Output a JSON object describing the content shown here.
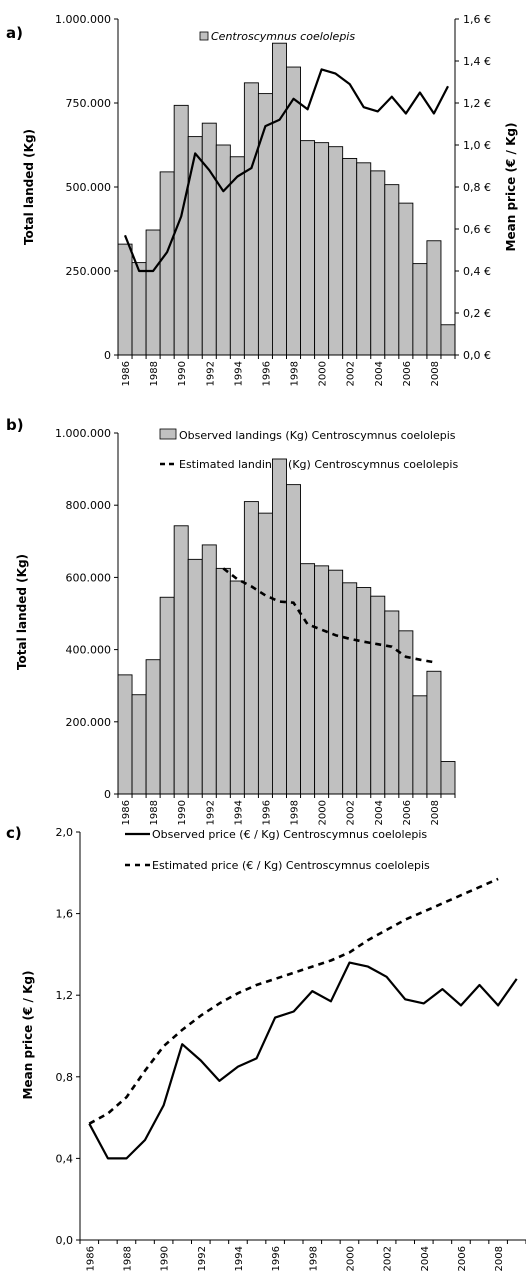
{
  "chart_data": [
    {
      "type": "bar",
      "panel_label": "a)",
      "title": "",
      "x": [
        1986,
        1987,
        1988,
        1989,
        1990,
        1991,
        1992,
        1993,
        1994,
        1995,
        1996,
        1997,
        1998,
        1999,
        2000,
        2001,
        2002,
        2003,
        2004,
        2005,
        2006,
        2007,
        2008,
        2009
      ],
      "xtick_labels": [
        "1986",
        "1988",
        "1990",
        "1992",
        "1994",
        "1996",
        "1998",
        "2000",
        "2002",
        "2004",
        "2006",
        "2008"
      ],
      "xtick_years": [
        1986,
        1988,
        1990,
        1992,
        1994,
        1996,
        1998,
        2000,
        2002,
        2004,
        2006,
        2008
      ],
      "ylabel": "Total landed (Kg)",
      "y2label": "Mean price (€ / Kg)",
      "ylim": [
        0,
        1000000
      ],
      "y2lim": [
        0,
        1.6
      ],
      "yticks": [
        0,
        250000,
        500000,
        750000,
        1000000
      ],
      "ytick_labels": [
        "0",
        "250.000",
        "500.000",
        "750.000",
        "1.000.000"
      ],
      "y2ticks": [
        0,
        0.2,
        0.4,
        0.6,
        0.8,
        1.0,
        1.2,
        1.4,
        1.6
      ],
      "y2tick_labels": [
        "0,0 €",
        "0,2 €",
        "0,4 €",
        "0,6 €",
        "0,8 €",
        "1,0 €",
        "1,2 €",
        "1,4 €",
        "1,6 €"
      ],
      "legend": [
        "Centroscymnus coelolepis"
      ],
      "legend_position": "top",
      "bar_color": "#c0c0c0",
      "line_color": "#000000",
      "series": [
        {
          "name": "Centroscymnus coelolepis",
          "kind": "bar",
          "axis": "left",
          "values": [
            330000,
            275000,
            372000,
            545000,
            743000,
            650000,
            690000,
            625000,
            590000,
            810000,
            778000,
            928000,
            857000,
            638000,
            632000,
            620000,
            585000,
            572000,
            548000,
            507000,
            452000,
            272000,
            340000,
            90000
          ]
        },
        {
          "kind": "line",
          "axis": "right",
          "style": "solid",
          "values": [
            0.57,
            0.4,
            0.4,
            0.49,
            0.66,
            0.96,
            0.88,
            0.78,
            0.85,
            0.89,
            1.09,
            1.12,
            1.22,
            1.17,
            1.36,
            1.34,
            1.29,
            1.18,
            1.16,
            1.23,
            1.15,
            1.25,
            1.15,
            1.28
          ]
        }
      ]
    },
    {
      "type": "bar",
      "panel_label": "b)",
      "title": "",
      "x": [
        1986,
        1987,
        1988,
        1989,
        1990,
        1991,
        1992,
        1993,
        1994,
        1995,
        1996,
        1997,
        1998,
        1999,
        2000,
        2001,
        2002,
        2003,
        2004,
        2005,
        2006,
        2007,
        2008,
        2009
      ],
      "xtick_labels": [
        "1986",
        "1988",
        "1990",
        "1992",
        "1994",
        "1996",
        "1998",
        "2000",
        "2002",
        "2004",
        "2006",
        "2008"
      ],
      "xtick_years": [
        1986,
        1988,
        1990,
        1992,
        1994,
        1996,
        1998,
        2000,
        2002,
        2004,
        2006,
        2008
      ],
      "ylabel": "Total landed (Kg)",
      "ylim": [
        0,
        1000000
      ],
      "yticks": [
        0,
        200000,
        400000,
        600000,
        800000,
        1000000
      ],
      "ytick_labels": [
        "0",
        "200.000",
        "400.000",
        "600.000",
        "800.000",
        "1.000.000"
      ],
      "legend_position": "top-right",
      "bar_color": "#c0c0c0",
      "series": [
        {
          "name": "Observed landings (Kg) Centroscymnus coelolepis",
          "kind": "bar",
          "values": [
            330000,
            275000,
            372000,
            545000,
            743000,
            650000,
            690000,
            625000,
            590000,
            810000,
            778000,
            928000,
            857000,
            638000,
            632000,
            620000,
            585000,
            572000,
            548000,
            507000,
            452000,
            272000,
            340000,
            90000
          ]
        },
        {
          "name": "Estimated landings (Kg) Centroscymnus coelolepis",
          "kind": "line",
          "style": "dashed",
          "x": [
            1993,
            1994,
            1995,
            1996,
            1997,
            1998,
            1999,
            2000,
            2001,
            2002,
            2003,
            2004,
            2005,
            2006,
            2007,
            2008
          ],
          "values": [
            625000,
            595000,
            575000,
            550000,
            533000,
            530000,
            470000,
            455000,
            440000,
            430000,
            422000,
            415000,
            408000,
            380000,
            372000,
            365000
          ]
        }
      ]
    },
    {
      "type": "line",
      "panel_label": "c)",
      "title": "",
      "x": [
        1986,
        1987,
        1988,
        1989,
        1990,
        1991,
        1992,
        1993,
        1994,
        1995,
        1996,
        1997,
        1998,
        1999,
        2000,
        2001,
        2002,
        2003,
        2004,
        2005,
        2006,
        2007,
        2008,
        2009
      ],
      "xtick_labels": [
        "1986",
        "1988",
        "1990",
        "1992",
        "1994",
        "1996",
        "1998",
        "2000",
        "2002",
        "2004",
        "2006",
        "2008"
      ],
      "xtick_years": [
        1986,
        1988,
        1990,
        1992,
        1994,
        1996,
        1998,
        2000,
        2002,
        2004,
        2006,
        2008
      ],
      "ylabel": "Mean price (€ / Kg)",
      "ylim": [
        0,
        2.0
      ],
      "yticks": [
        0,
        0.4,
        0.8,
        1.2,
        1.6,
        2.0
      ],
      "ytick_labels": [
        "0,0",
        "0,4",
        "0,8",
        "1,2",
        "1,6",
        "2,0"
      ],
      "legend_position": "top",
      "series": [
        {
          "name": "Observed price (€ / Kg) Centroscymnus coelolepis",
          "style": "solid",
          "values": [
            0.57,
            0.4,
            0.4,
            0.49,
            0.66,
            0.96,
            0.88,
            0.78,
            0.85,
            0.89,
            1.09,
            1.12,
            1.22,
            1.17,
            1.36,
            1.34,
            1.29,
            1.18,
            1.16,
            1.23,
            1.15,
            1.25,
            1.15,
            1.28
          ]
        },
        {
          "name": "Estimated price (€ / Kg) Centroscymnus coelolepis",
          "style": "dashed",
          "x": [
            1986,
            1987,
            1988,
            1989,
            1990,
            1991,
            1992,
            1993,
            1994,
            1995,
            1996,
            1997,
            1998,
            1999,
            2000,
            2001,
            2002,
            2003,
            2004,
            2005,
            2006,
            2007,
            2008
          ],
          "values": [
            0.57,
            0.62,
            0.7,
            0.83,
            0.95,
            1.03,
            1.1,
            1.16,
            1.21,
            1.25,
            1.28,
            1.31,
            1.34,
            1.37,
            1.41,
            1.47,
            1.52,
            1.57,
            1.61,
            1.65,
            1.69,
            1.73,
            1.77
          ]
        }
      ]
    }
  ]
}
